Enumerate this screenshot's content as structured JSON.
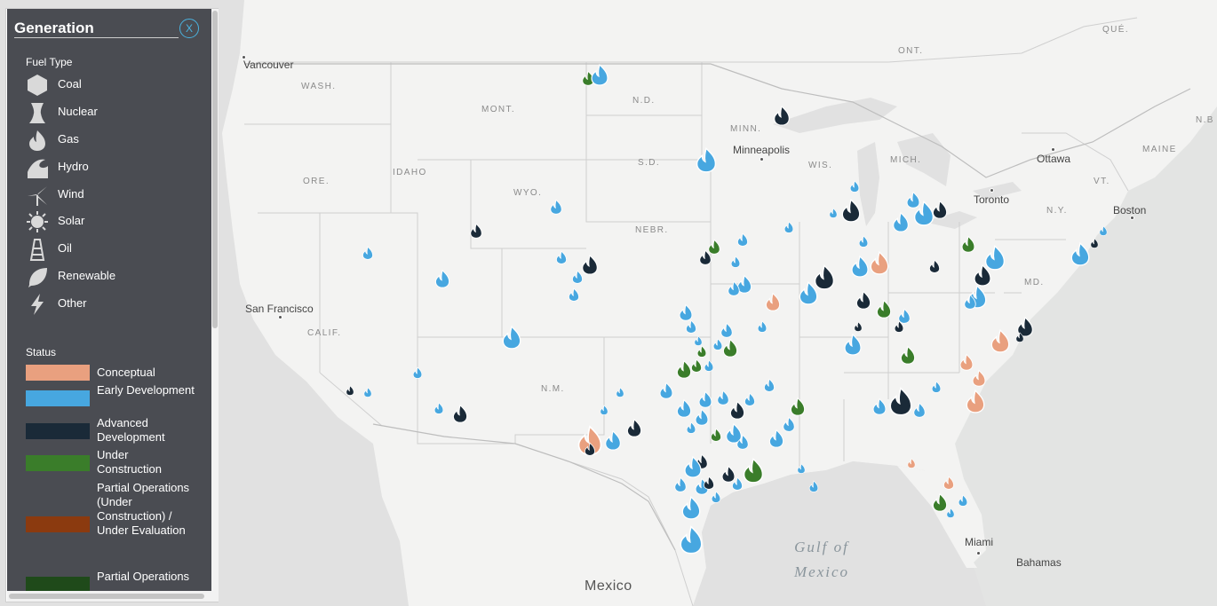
{
  "panel": {
    "title": "Generation",
    "close_label": "X",
    "fuel_type_heading": "Fuel Type",
    "fuel_types": [
      {
        "label": "Coal",
        "icon": "hexagon-icon"
      },
      {
        "label": "Nuclear",
        "icon": "cooling-tower-icon"
      },
      {
        "label": "Gas",
        "icon": "flame-icon"
      },
      {
        "label": "Hydro",
        "icon": "wave-icon"
      },
      {
        "label": "Wind",
        "icon": "wind-turbine-icon"
      },
      {
        "label": "Solar",
        "icon": "sun-icon"
      },
      {
        "label": "Oil",
        "icon": "oil-derrick-icon"
      },
      {
        "label": "Renewable",
        "icon": "leaf-icon"
      },
      {
        "label": "Other",
        "icon": "lightning-icon"
      }
    ],
    "status_heading": "Status",
    "statuses": [
      {
        "label": "Conceptual",
        "color": "#e9a07f"
      },
      {
        "label": "Early Development",
        "color": "#47a7e0"
      },
      {
        "label": "Advanced Development",
        "color": "#1a2a38"
      },
      {
        "label": "Under Construction",
        "color": "#3a7d2a"
      },
      {
        "label": "Partial Operations (Under Construction) / Under Evaluation",
        "color": "#8b3a0f"
      },
      {
        "label": "Partial Operations",
        "color": "#1f4a1a"
      }
    ]
  },
  "map": {
    "regions": [
      "WASH.",
      "ORE.",
      "IDAHO",
      "MONT.",
      "WYO.",
      "N.D.",
      "S.D.",
      "NEBR.",
      "MINN.",
      "WIS.",
      "MICH.",
      "CALIF.",
      "N.M.",
      "MD.",
      "N.Y.",
      "VT.",
      "MAINE",
      "ONT.",
      "QUÉ.",
      "N.B"
    ],
    "cities": [
      "Vancouver",
      "Minneapolis",
      "Ottawa",
      "Toronto",
      "Boston",
      "San Francisco",
      "Miami",
      "Bahamas"
    ],
    "water": "Gulf of\nMexico",
    "country": "Mexico"
  }
}
